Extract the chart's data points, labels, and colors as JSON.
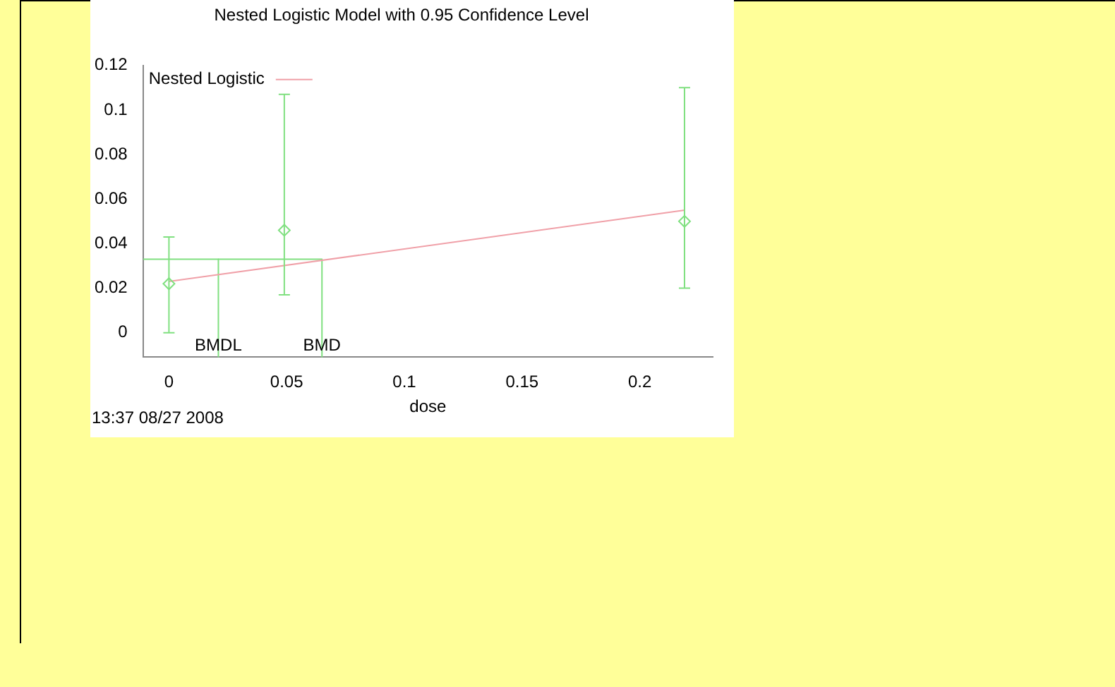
{
  "chart_data": {
    "type": "scatter",
    "title": "Nested Logistic Model with 0.95 Confidence Level",
    "xlabel": "dose",
    "xlim": [
      -0.011,
      0.231
    ],
    "xticks": [
      0,
      0.05,
      0.1,
      0.15,
      0.2
    ],
    "ylim": [
      -0.011,
      0.12
    ],
    "yticks": [
      0,
      0.02,
      0.04,
      0.06,
      0.08,
      0.1,
      0.12
    ],
    "grid": false,
    "legend": "top left",
    "series": [
      {
        "type": "scatter",
        "color": "#80e080",
        "marker": "diamond",
        "x": [
          0,
          0.049,
          0.219
        ],
        "values": [
          0.022,
          0.046,
          0.05
        ],
        "errors": [
          [
            0,
            0.043
          ],
          [
            0.017,
            0.107
          ],
          [
            0.02,
            0.11
          ]
        ]
      },
      {
        "type": "line",
        "name": "Nested Logistic",
        "color": "#f0a0a8",
        "marker": "none",
        "x": [
          0,
          0.219
        ],
        "values": [
          0.023,
          0.055
        ]
      },
      {
        "type": "line",
        "color": "#80e080",
        "marker": "none",
        "x": [
          -0.011,
          0.065,
          0.065
        ],
        "values": [
          0.033,
          0.033,
          -0.011
        ]
      },
      {
        "type": "line",
        "color": "#80e080",
        "marker": "none",
        "x": [
          0.021,
          0.021
        ],
        "values": [
          0.033,
          -0.011
        ]
      }
    ],
    "annotations": [
      {
        "text": "BMDL",
        "x": 0.021,
        "y": -0.006
      },
      {
        "text": "BMD",
        "x": 0.065,
        "y": -0.006
      },
      "13:37 08/27 2008"
    ]
  }
}
